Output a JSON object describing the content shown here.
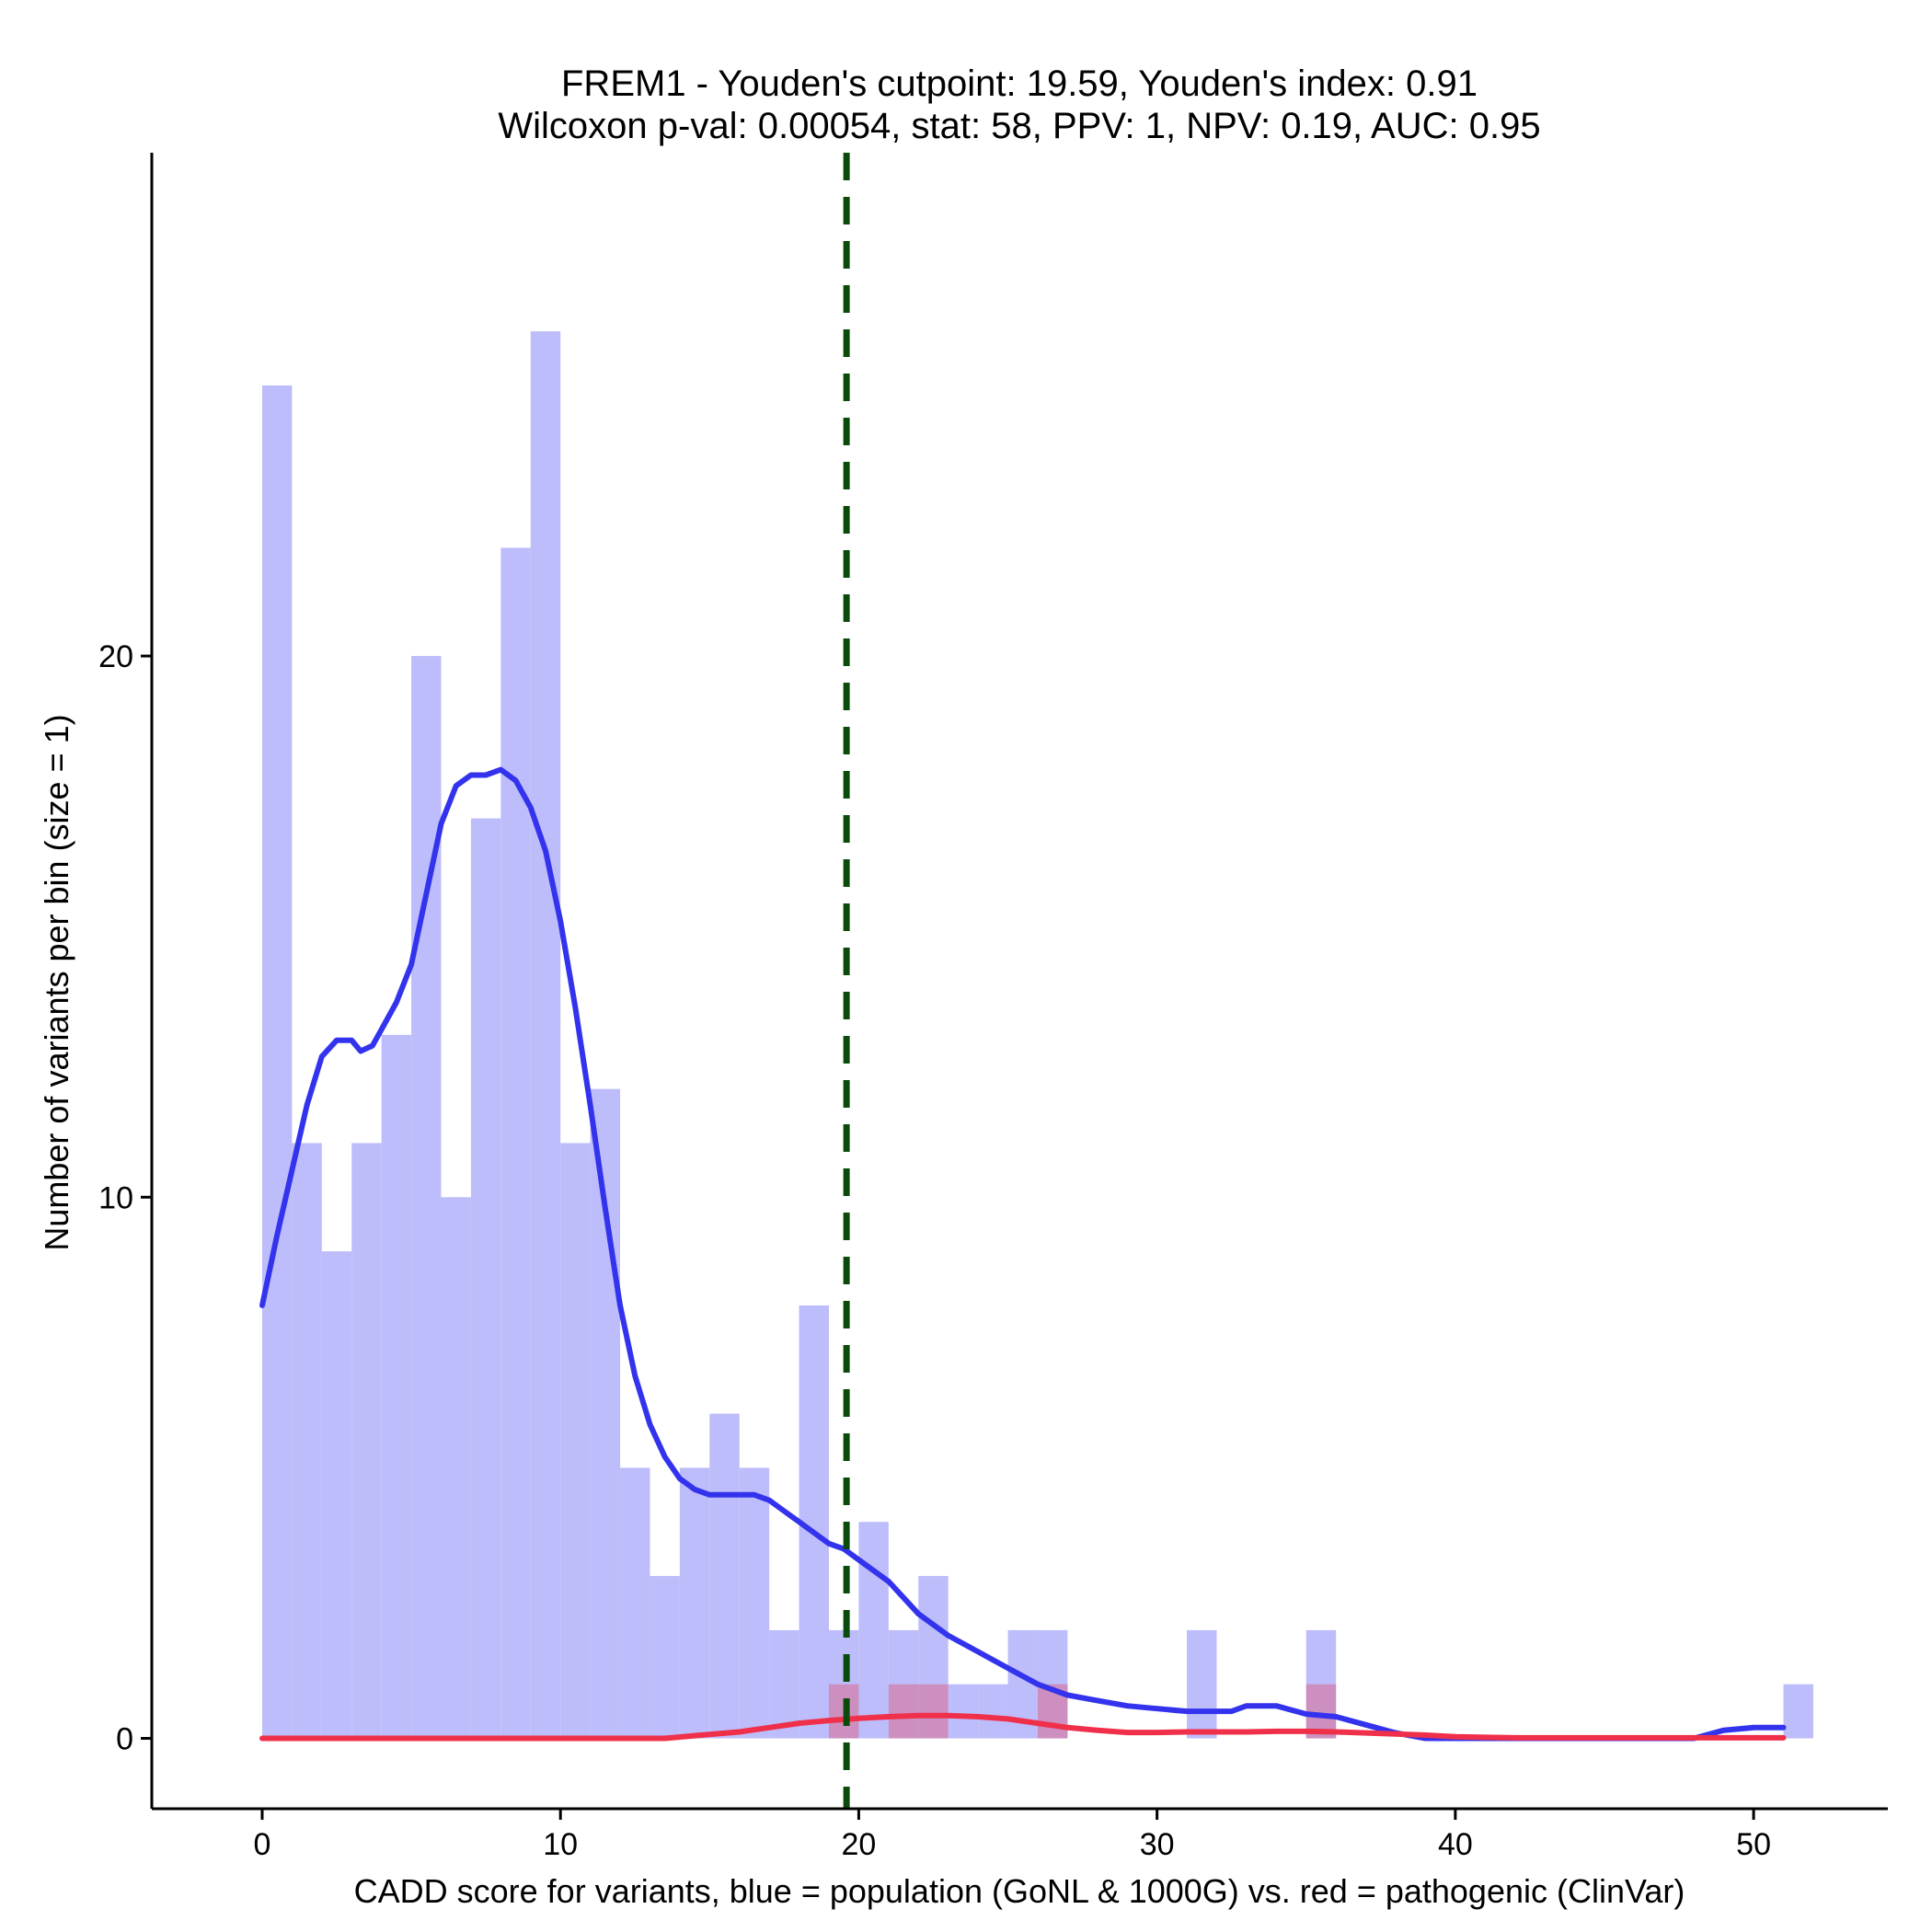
{
  "chart_data": {
    "type": "histogram",
    "title": "FREM1 - Youden's cutpoint: 19.59, Youden's index: 0.91",
    "subtitle": "Wilcoxon p-val: 0.00054, stat: 58, PPV: 1, NPV: 0.19, AUC: 0.95",
    "xlabel": "CADD score for variants, blue = population (GoNL & 1000G) vs. red = pathogenic (ClinVar)",
    "ylabel": "Number of variants per bin (size = 1)",
    "xlim": [
      -3.7,
      54.5
    ],
    "ylim": [
      -1.3,
      29.3
    ],
    "x_ticks": [
      0,
      10,
      20,
      30,
      40,
      50
    ],
    "x_tick_labels": [
      "0",
      "10",
      "20",
      "30",
      "40",
      "50"
    ],
    "y_ticks": [
      0,
      10,
      20
    ],
    "y_tick_labels": [
      "0",
      "10",
      "20"
    ],
    "bin_width": 1,
    "cutpoint": 19.59,
    "colors": {
      "population_bar": "#bdbdfb",
      "pathogenic_bar": "#cc8fbf",
      "population_line": "#3333ee",
      "pathogenic_line": "#f0304a",
      "cutpoint_line": "#0a4a0a"
    },
    "series": [
      {
        "name": "population (GoNL & 1000G)",
        "bin_starts": [
          0,
          1,
          2,
          3,
          4,
          5,
          6,
          7,
          8,
          9,
          10,
          11,
          12,
          13,
          14,
          15,
          16,
          17,
          18,
          19,
          20,
          21,
          22,
          23,
          24,
          25,
          26,
          31,
          35,
          51
        ],
        "counts": [
          25,
          11,
          9,
          11,
          13,
          20,
          10,
          17,
          22,
          26,
          11,
          12,
          5,
          3,
          5,
          6,
          5,
          2,
          8,
          2,
          4,
          2,
          3,
          1,
          1,
          2,
          2,
          2,
          2,
          1
        ]
      },
      {
        "name": "pathogenic (ClinVar)",
        "bin_starts": [
          19,
          21,
          22,
          26,
          35
        ],
        "counts": [
          1,
          1,
          1,
          1,
          1
        ]
      }
    ],
    "density_lines": [
      {
        "name": "population density",
        "x": [
          0,
          0.5,
          1,
          1.5,
          2,
          2.5,
          3,
          3.3,
          3.7,
          4,
          4.5,
          5,
          5.5,
          6,
          6.5,
          7,
          7.5,
          8,
          8.5,
          9,
          9.5,
          10,
          10.5,
          11,
          11.5,
          12,
          12.5,
          13,
          13.5,
          14,
          14.5,
          15,
          15.5,
          16,
          16.5,
          17,
          17.5,
          18,
          18.5,
          19,
          19.5,
          20,
          21,
          22,
          23,
          24,
          25,
          26,
          27,
          28,
          29,
          30,
          31,
          31.5,
          32,
          32.5,
          33,
          34,
          35,
          36,
          37,
          38,
          39,
          40,
          41,
          42,
          43,
          44,
          45,
          46,
          47,
          48,
          49,
          50,
          51
        ],
        "y": [
          8.0,
          9.3,
          10.5,
          11.7,
          12.6,
          12.9,
          12.9,
          12.7,
          12.8,
          13.1,
          13.6,
          14.3,
          15.6,
          16.9,
          17.6,
          17.8,
          17.8,
          17.9,
          17.7,
          17.2,
          16.4,
          15.1,
          13.5,
          11.7,
          9.8,
          8.0,
          6.7,
          5.8,
          5.2,
          4.8,
          4.6,
          4.5,
          4.5,
          4.5,
          4.5,
          4.4,
          4.2,
          4.0,
          3.8,
          3.6,
          3.5,
          3.3,
          2.9,
          2.3,
          1.9,
          1.6,
          1.3,
          1.0,
          0.8,
          0.7,
          0.6,
          0.55,
          0.5,
          0.5,
          0.5,
          0.5,
          0.6,
          0.6,
          0.45,
          0.4,
          0.25,
          0.1,
          0.0,
          0.0,
          0.0,
          0.0,
          0.0,
          0.0,
          0.0,
          0.0,
          0.0,
          0.0,
          0.15,
          0.2,
          0.2
        ]
      },
      {
        "name": "pathogenic density",
        "x": [
          0,
          5,
          10,
          13.5,
          14.5,
          16,
          17,
          18,
          19,
          20,
          21,
          22,
          23,
          24,
          25,
          26,
          27,
          28,
          29,
          30,
          31,
          32,
          33,
          34,
          35,
          36,
          37,
          38,
          39,
          40,
          41,
          42,
          44,
          46,
          48,
          50,
          51
        ],
        "y": [
          0,
          0,
          0,
          0,
          0.05,
          0.12,
          0.2,
          0.28,
          0.33,
          0.37,
          0.4,
          0.42,
          0.42,
          0.4,
          0.36,
          0.28,
          0.2,
          0.15,
          0.11,
          0.11,
          0.12,
          0.12,
          0.12,
          0.13,
          0.13,
          0.12,
          0.1,
          0.08,
          0.06,
          0.03,
          0.02,
          0.01,
          0.01,
          0.01,
          0.01,
          0.01,
          0.01
        ]
      }
    ]
  }
}
